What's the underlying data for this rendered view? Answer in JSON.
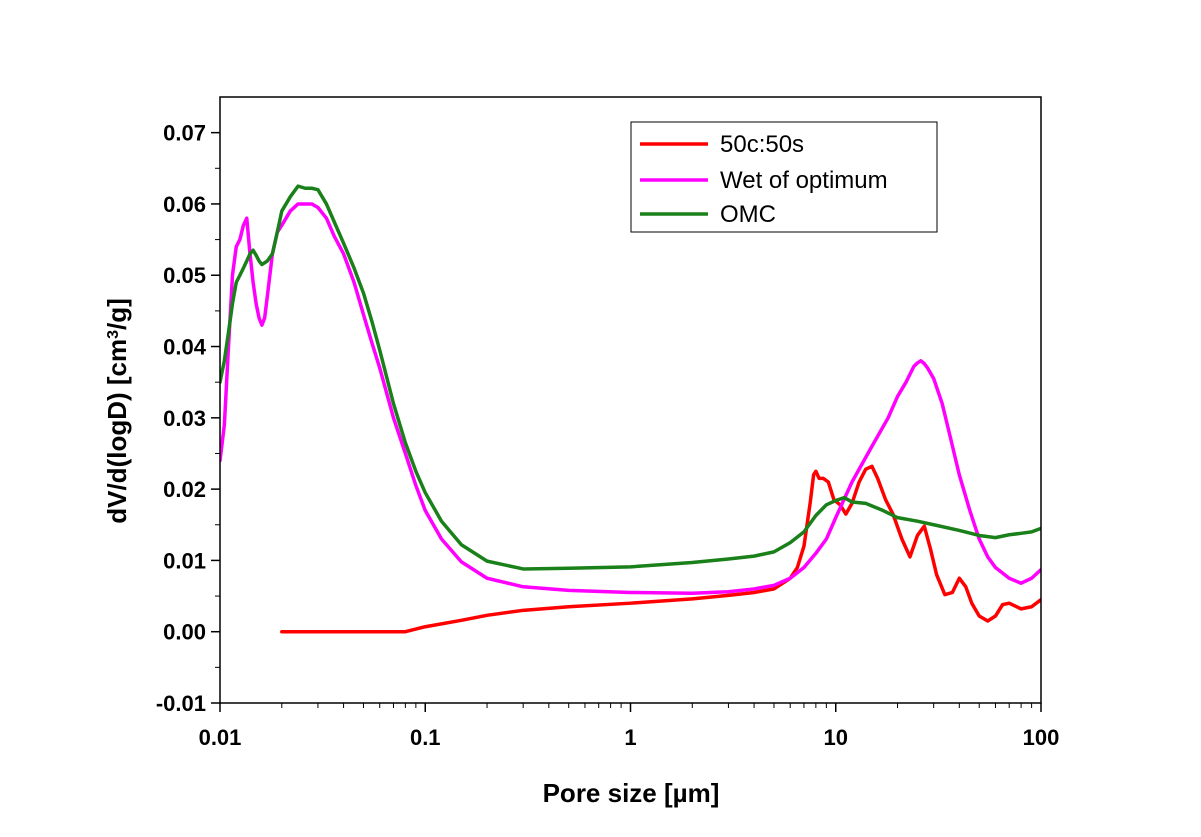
{
  "chart_data": {
    "type": "line",
    "xlabel": "Pore size [µm]",
    "ylabel_parts": [
      "dV/d(logD) [cm",
      "3",
      "/g]"
    ],
    "x_scale": "log",
    "xlim": [
      0.01,
      100
    ],
    "ylim": [
      -0.01,
      0.075
    ],
    "x_ticks": [
      0.01,
      0.1,
      1,
      10,
      100
    ],
    "x_tick_labels": [
      "0.01",
      "0.1",
      "1",
      "10",
      "100"
    ],
    "y_ticks": [
      -0.01,
      0.0,
      0.01,
      0.02,
      0.03,
      0.04,
      0.05,
      0.06,
      0.07
    ],
    "y_tick_labels": [
      "-0.01",
      "0.00",
      "0.01",
      "0.02",
      "0.03",
      "0.04",
      "0.05",
      "0.06",
      "0.07"
    ],
    "grid": false,
    "legend_position": "top-right",
    "series": [
      {
        "name": "50c:50s",
        "color": "#ff0000",
        "x": [
          0.02,
          0.05,
          0.08,
          0.1,
          0.15,
          0.2,
          0.3,
          0.5,
          1,
          2,
          3,
          4,
          5,
          6,
          6.5,
          7,
          7.5,
          7.8,
          8.0,
          8.3,
          8.7,
          9.2,
          9.8,
          10.5,
          11.2,
          12,
          13,
          14,
          15,
          16,
          17.5,
          19,
          21,
          23,
          25,
          27,
          29,
          31,
          34,
          37,
          40,
          43,
          46,
          50,
          55,
          60,
          65,
          70,
          80,
          90,
          100
        ],
        "y": [
          0.0,
          0.0,
          0.0,
          0.0007,
          0.0016,
          0.0023,
          0.003,
          0.0035,
          0.004,
          0.0046,
          0.0051,
          0.0055,
          0.006,
          0.0075,
          0.009,
          0.012,
          0.018,
          0.022,
          0.0225,
          0.0215,
          0.0215,
          0.021,
          0.0185,
          0.0178,
          0.0165,
          0.018,
          0.021,
          0.0228,
          0.0232,
          0.0215,
          0.0185,
          0.0165,
          0.013,
          0.0105,
          0.0135,
          0.0148,
          0.0115,
          0.008,
          0.0052,
          0.0055,
          0.0075,
          0.0063,
          0.004,
          0.0022,
          0.0015,
          0.0022,
          0.0038,
          0.004,
          0.0032,
          0.0035,
          0.0045
        ]
      },
      {
        "name": "Wet of optimum",
        "color": "#ff00ff",
        "x": [
          0.01,
          0.0105,
          0.011,
          0.0115,
          0.012,
          0.0125,
          0.013,
          0.0135,
          0.014,
          0.0145,
          0.015,
          0.0155,
          0.016,
          0.0165,
          0.017,
          0.018,
          0.019,
          0.02,
          0.022,
          0.024,
          0.026,
          0.028,
          0.03,
          0.033,
          0.036,
          0.04,
          0.045,
          0.05,
          0.055,
          0.06,
          0.07,
          0.08,
          0.09,
          0.1,
          0.12,
          0.15,
          0.2,
          0.3,
          0.5,
          1,
          2,
          3,
          4,
          5,
          6,
          7,
          8,
          9,
          10,
          12,
          15,
          18,
          20,
          22,
          24,
          25,
          26,
          27,
          28,
          30,
          33,
          36,
          40,
          45,
          50,
          55,
          60,
          70,
          80,
          90,
          100
        ],
        "y": [
          0.024,
          0.029,
          0.04,
          0.05,
          0.054,
          0.055,
          0.057,
          0.058,
          0.053,
          0.049,
          0.046,
          0.044,
          0.043,
          0.044,
          0.047,
          0.053,
          0.056,
          0.057,
          0.059,
          0.06,
          0.06,
          0.06,
          0.0595,
          0.058,
          0.0555,
          0.053,
          0.049,
          0.0445,
          0.0405,
          0.037,
          0.03,
          0.025,
          0.0205,
          0.017,
          0.013,
          0.0098,
          0.0075,
          0.0063,
          0.0058,
          0.0055,
          0.0054,
          0.0056,
          0.006,
          0.0065,
          0.0075,
          0.009,
          0.011,
          0.013,
          0.016,
          0.021,
          0.026,
          0.03,
          0.033,
          0.035,
          0.0372,
          0.0377,
          0.038,
          0.0376,
          0.037,
          0.0355,
          0.032,
          0.0275,
          0.022,
          0.017,
          0.013,
          0.0105,
          0.009,
          0.0075,
          0.0068,
          0.0075,
          0.0087
        ]
      },
      {
        "name": "OMC",
        "color": "#1a801a",
        "x": [
          0.01,
          0.0105,
          0.011,
          0.0115,
          0.012,
          0.0125,
          0.013,
          0.0135,
          0.014,
          0.0145,
          0.015,
          0.0155,
          0.016,
          0.017,
          0.018,
          0.019,
          0.02,
          0.022,
          0.024,
          0.026,
          0.028,
          0.03,
          0.033,
          0.036,
          0.04,
          0.045,
          0.05,
          0.055,
          0.06,
          0.07,
          0.08,
          0.09,
          0.1,
          0.12,
          0.15,
          0.2,
          0.3,
          0.5,
          1,
          2,
          3,
          4,
          5,
          6,
          7,
          8,
          9,
          10,
          11,
          12,
          14,
          17,
          20,
          25,
          30,
          40,
          50,
          60,
          70,
          80,
          90,
          100
        ],
        "y": [
          0.035,
          0.038,
          0.042,
          0.046,
          0.049,
          0.05,
          0.051,
          0.052,
          0.053,
          0.0535,
          0.0528,
          0.052,
          0.0515,
          0.052,
          0.053,
          0.056,
          0.059,
          0.061,
          0.0625,
          0.0622,
          0.0622,
          0.062,
          0.06,
          0.0575,
          0.0545,
          0.051,
          0.0475,
          0.0435,
          0.0395,
          0.032,
          0.0265,
          0.0225,
          0.0195,
          0.0155,
          0.0122,
          0.0099,
          0.0088,
          0.0089,
          0.0091,
          0.0097,
          0.0102,
          0.0106,
          0.0112,
          0.0125,
          0.014,
          0.0163,
          0.0178,
          0.0184,
          0.0188,
          0.0182,
          0.018,
          0.017,
          0.016,
          0.0155,
          0.015,
          0.0142,
          0.0135,
          0.0132,
          0.0136,
          0.0138,
          0.014,
          0.0145
        ]
      }
    ]
  }
}
